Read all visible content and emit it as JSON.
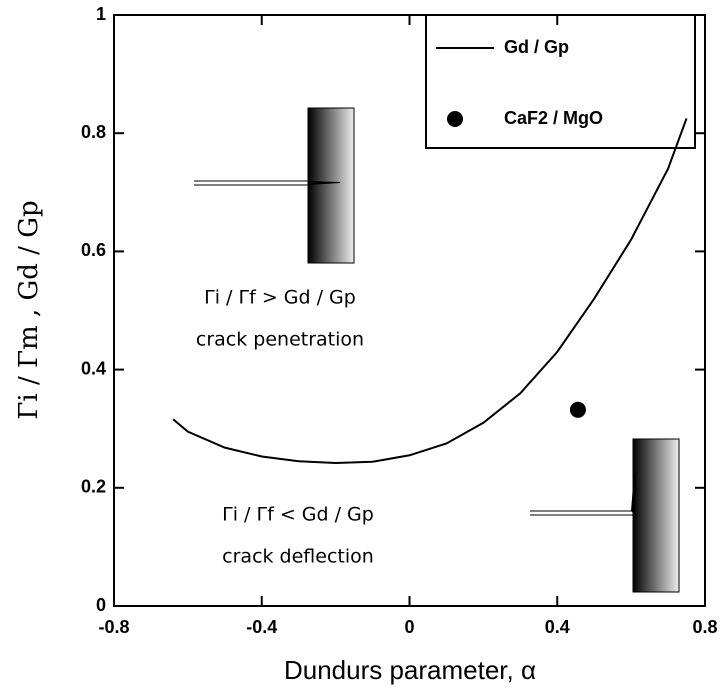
{
  "chart_data": {
    "type": "line",
    "xlabel": "Dundurs parameter, α",
    "ylabel": "Γi / Γm , Gd / Gp",
    "xlim": [
      -0.8,
      0.8
    ],
    "xticks": [
      -0.8,
      -0.4,
      0,
      0.4,
      0.8
    ],
    "ylim": [
      0,
      1
    ],
    "yticks": [
      0,
      0.2,
      0.4,
      0.6,
      0.8,
      1
    ],
    "series": [
      {
        "name": "Gd / Gp",
        "color": "#000000",
        "x": [
          -0.64,
          -0.6,
          -0.5,
          -0.4,
          -0.3,
          -0.2,
          -0.1,
          0,
          0.1,
          0.2,
          0.3,
          0.4,
          0.5,
          0.6,
          0.7,
          0.75
        ],
        "values": [
          0.316,
          0.295,
          0.268,
          0.253,
          0.245,
          0.242,
          0.244,
          0.255,
          0.275,
          0.31,
          0.36,
          0.43,
          0.52,
          0.62,
          0.74,
          0.825
        ]
      },
      {
        "name": "CaF2 / MgO",
        "color": "#000000",
        "type": "scatter",
        "x": [
          0.456
        ],
        "values": [
          0.332
        ]
      }
    ],
    "annotations": [
      "Γi / Γf > Gd / Gp",
      "crack penetration",
      "Γi / Γf < Gd / Gp",
      "crack deflection"
    ]
  }
}
